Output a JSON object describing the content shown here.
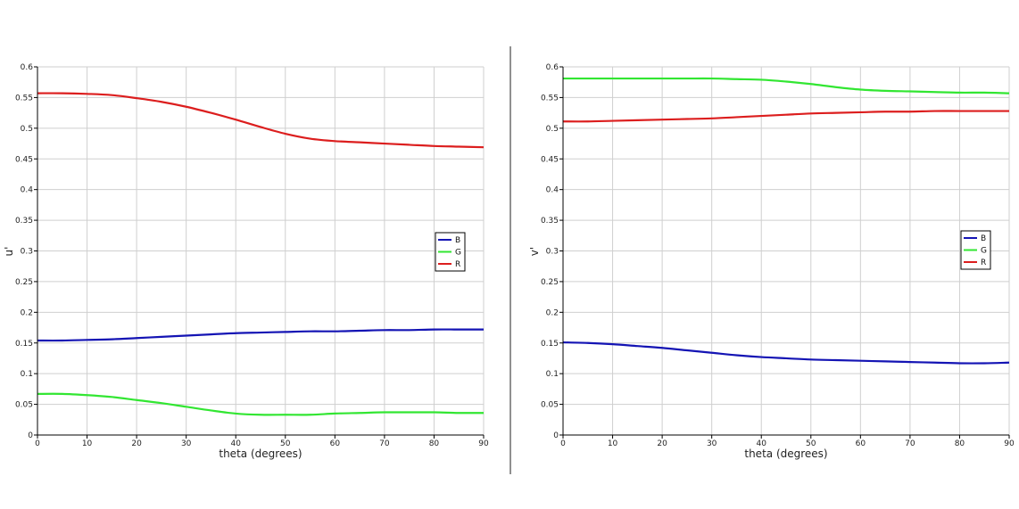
{
  "colors": {
    "B": "#1414b4",
    "G": "#32e632",
    "R": "#dc1e1e",
    "grid": "#cfcfcf",
    "axis": "#000000",
    "divider": "#222222"
  },
  "chart_data": [
    {
      "type": "line",
      "xlabel": "theta (degrees)",
      "ylabel": "u'",
      "xlim": [
        0,
        90
      ],
      "ylim": [
        0,
        0.6
      ],
      "xticks": [
        0,
        10,
        20,
        30,
        40,
        50,
        60,
        70,
        80,
        90
      ],
      "yticks": [
        0,
        0.05,
        0.1,
        0.15,
        0.2,
        0.25,
        0.3,
        0.35,
        0.4,
        0.45,
        0.5,
        0.55,
        0.6
      ],
      "grid": true,
      "legend": "right",
      "x": [
        0,
        5,
        10,
        15,
        20,
        25,
        30,
        35,
        40,
        45,
        50,
        55,
        60,
        65,
        70,
        75,
        80,
        85,
        90
      ],
      "series": [
        {
          "name": "B",
          "values": [
            0.154,
            0.154,
            0.155,
            0.156,
            0.158,
            0.16,
            0.162,
            0.164,
            0.166,
            0.167,
            0.168,
            0.169,
            0.169,
            0.17,
            0.171,
            0.171,
            0.172,
            0.172,
            0.172
          ]
        },
        {
          "name": "G",
          "values": [
            0.067,
            0.067,
            0.065,
            0.062,
            0.057,
            0.052,
            0.046,
            0.04,
            0.035,
            0.033,
            0.033,
            0.033,
            0.035,
            0.036,
            0.037,
            0.037,
            0.037,
            0.036,
            0.036
          ]
        },
        {
          "name": "R",
          "values": [
            0.557,
            0.557,
            0.556,
            0.554,
            0.549,
            0.543,
            0.535,
            0.525,
            0.514,
            0.502,
            0.491,
            0.483,
            0.479,
            0.477,
            0.475,
            0.473,
            0.471,
            0.47,
            0.469
          ]
        }
      ]
    },
    {
      "type": "line",
      "xlabel": "theta (degrees)",
      "ylabel": "v'",
      "xlim": [
        0,
        90
      ],
      "ylim": [
        0,
        0.6
      ],
      "xticks": [
        0,
        10,
        20,
        30,
        40,
        50,
        60,
        70,
        80,
        90
      ],
      "yticks": [
        0,
        0.05,
        0.1,
        0.15,
        0.2,
        0.25,
        0.3,
        0.35,
        0.4,
        0.45,
        0.5,
        0.55,
        0.6
      ],
      "grid": true,
      "legend": "right",
      "x": [
        0,
        5,
        10,
        15,
        20,
        25,
        30,
        35,
        40,
        45,
        50,
        55,
        60,
        65,
        70,
        75,
        80,
        85,
        90
      ],
      "series": [
        {
          "name": "B",
          "values": [
            0.151,
            0.15,
            0.148,
            0.145,
            0.142,
            0.138,
            0.134,
            0.13,
            0.127,
            0.125,
            0.123,
            0.122,
            0.121,
            0.12,
            0.119,
            0.118,
            0.117,
            0.117,
            0.118
          ]
        },
        {
          "name": "G",
          "values": [
            0.581,
            0.581,
            0.581,
            0.581,
            0.581,
            0.581,
            0.581,
            0.58,
            0.579,
            0.576,
            0.572,
            0.567,
            0.563,
            0.561,
            0.56,
            0.559,
            0.558,
            0.558,
            0.557
          ]
        },
        {
          "name": "R",
          "values": [
            0.511,
            0.511,
            0.512,
            0.513,
            0.514,
            0.515,
            0.516,
            0.518,
            0.52,
            0.522,
            0.524,
            0.525,
            0.526,
            0.527,
            0.527,
            0.528,
            0.528,
            0.528,
            0.528
          ]
        }
      ]
    }
  ]
}
